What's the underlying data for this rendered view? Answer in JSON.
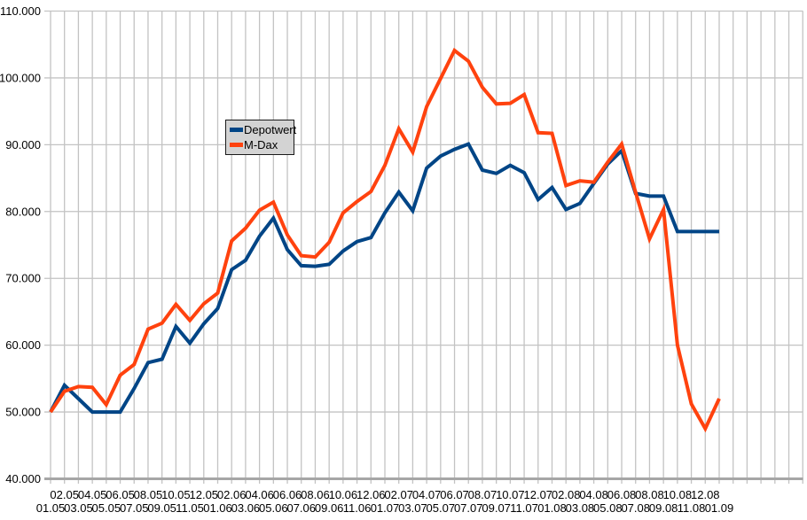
{
  "chart_data": {
    "type": "line",
    "title": "",
    "xlabel": "",
    "ylabel": "",
    "grid": true,
    "legend_position": "inside-upper-left",
    "ylim": [
      40000,
      110000
    ],
    "y_tick_labels": [
      "110.000",
      "100.000",
      "90.000",
      "80.000",
      "70.000",
      "60.000",
      "50.000",
      "40.000"
    ],
    "categories": [
      "01.05",
      "02.05",
      "03.05",
      "04.05",
      "05.05",
      "06.05",
      "07.05",
      "08.05",
      "09.05",
      "10.05",
      "11.05",
      "12.05",
      "01.06",
      "02.06",
      "03.06",
      "04.06",
      "05.06",
      "06.06",
      "07.06",
      "08.06",
      "09.06",
      "10.06",
      "11.06",
      "12.06",
      "01.07",
      "02.07",
      "03.07",
      "04.07",
      "05.07",
      "06.07",
      "07.07",
      "08.07",
      "09.07",
      "10.07",
      "11.07",
      "12.07",
      "01.08",
      "02.08",
      "03.08",
      "04.08",
      "05.08",
      "06.08",
      "07.08",
      "08.08",
      "09.08",
      "10.08",
      "11.08",
      "12.08",
      "01.09"
    ],
    "series": [
      {
        "name": "Depotwert",
        "color": "#004586",
        "values": [
          50000,
          54000,
          52000,
          50000,
          50000,
          50000,
          53500,
          57400,
          57900,
          62800,
          60300,
          63200,
          65500,
          71300,
          72700,
          76300,
          79000,
          74300,
          71900,
          71800,
          72100,
          74100,
          75500,
          76100,
          79800,
          82900,
          80100,
          86500,
          88300,
          89300,
          90100,
          86200,
          85700,
          86900,
          85800,
          81800,
          83600,
          80300,
          81200,
          84200,
          87100,
          89100,
          82700,
          82300,
          82300,
          77000,
          77000,
          77000,
          77000
        ]
      },
      {
        "name": "M-Dax",
        "color": "#ff420e",
        "values": [
          50000,
          53100,
          53800,
          53700,
          51100,
          55500,
          57100,
          62400,
          63300,
          66100,
          63700,
          66200,
          67800,
          75600,
          77500,
          80200,
          81400,
          76500,
          73400,
          73200,
          75400,
          79800,
          81500,
          83000,
          86900,
          92400,
          88900,
          95700,
          99900,
          104100,
          102500,
          98600,
          96100,
          96200,
          97500,
          91800,
          91700,
          83900,
          84600,
          84400,
          87400,
          90100,
          82900,
          75900,
          80300,
          60000,
          51200,
          47500,
          52000
        ]
      }
    ]
  },
  "colors": {
    "gridline": "#c3c3c3",
    "axis": "#a6a6a6",
    "text": "#000000",
    "legend_bg": "#d3d3d3",
    "legend_border": "#1a1a1a"
  }
}
